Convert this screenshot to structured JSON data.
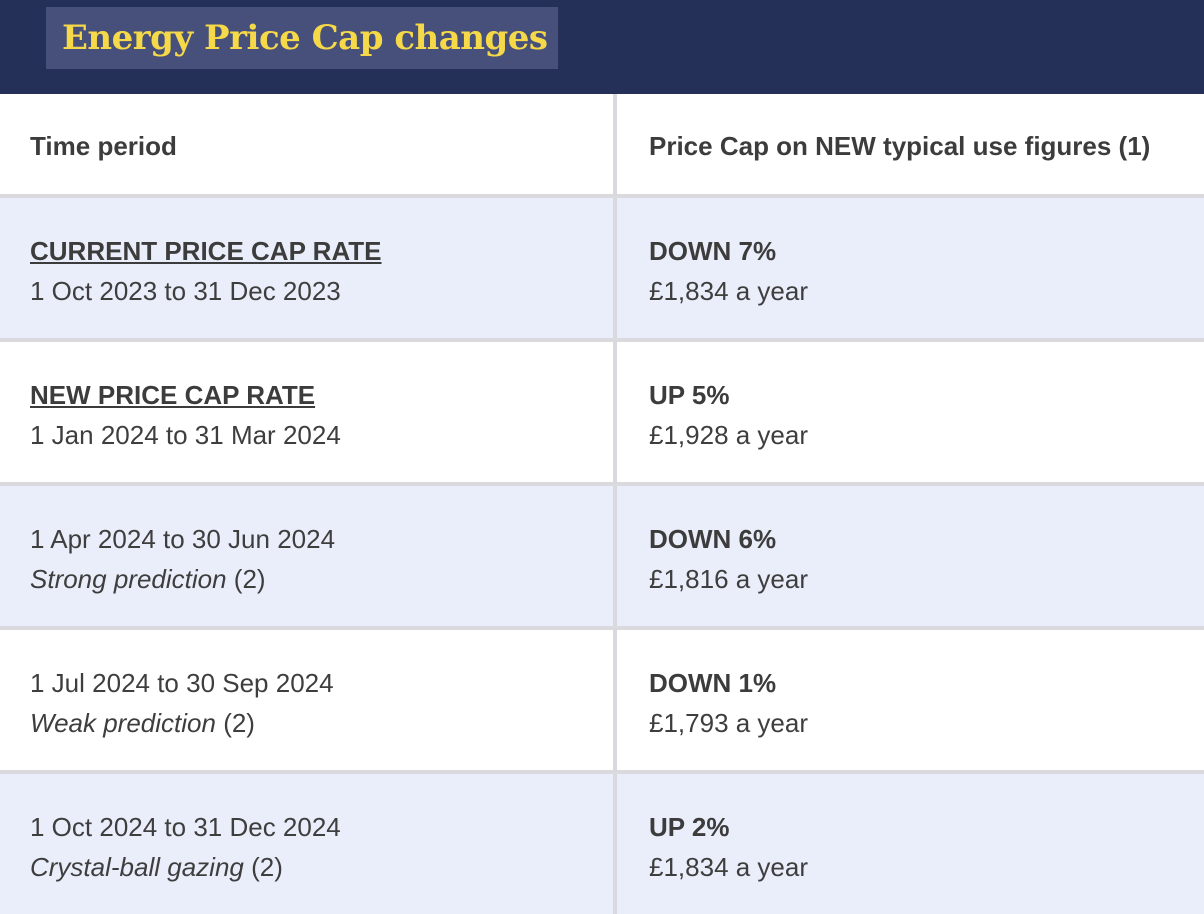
{
  "header": {
    "title": "Energy Price Cap changes"
  },
  "table": {
    "columns": [
      "Time period",
      "Price Cap on NEW typical use figures (1)"
    ],
    "rows": [
      {
        "period_label": "CURRENT PRICE CAP RATE",
        "period_dates": "1 Oct 2023 to 31 Dec 2023",
        "change": "DOWN 7%",
        "price": "£1,834 a year"
      },
      {
        "period_label": "NEW PRICE CAP RATE",
        "period_dates": "1 Jan 2024 to 31 Mar 2024",
        "change": "UP 5%",
        "price": "£1,928 a year"
      },
      {
        "period_dates": "1 Apr 2024 to 30 Jun 2024",
        "prediction": "Strong prediction",
        "note": "(2)",
        "change": "DOWN 6%",
        "price": "£1,816 a year"
      },
      {
        "period_dates": "1 Jul 2024 to 30 Sep 2024",
        "prediction": "Weak prediction",
        "note": "(2)",
        "change": "DOWN 1%",
        "price": "£1,793 a year"
      },
      {
        "period_dates": "1 Oct 2024 to 31 Dec 2024",
        "prediction": "Crystal-ball gazing",
        "note": "(2)",
        "change": "UP 2%",
        "price": "£1,834 a year"
      }
    ]
  },
  "colors": {
    "header_bg": "#243057",
    "title_box_bg": "#46507a",
    "title_text": "#f6d948",
    "row_alt_bg": "#eaeefa",
    "divider": "#d9d9de"
  }
}
